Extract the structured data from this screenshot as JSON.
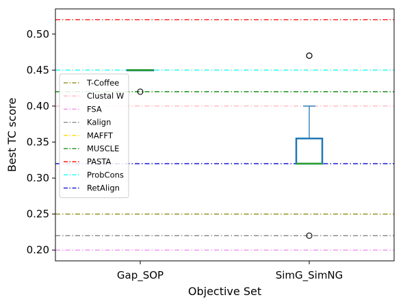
{
  "chart_data": {
    "type": "box",
    "xlabel": "Objective Set",
    "ylabel": "Best TC score",
    "ylim": [
      0.185,
      0.535
    ],
    "yticks": [
      0.2,
      0.25,
      0.3,
      0.35,
      0.4,
      0.45,
      0.5
    ],
    "ytick_labels": [
      "0.20",
      "0.25",
      "0.30",
      "0.35",
      "0.40",
      "0.45",
      "0.50"
    ],
    "categories": [
      "Gap_SOP",
      "SimG_SimNG"
    ],
    "boxes": [
      {
        "category": "Gap_SOP",
        "whisker_low": 0.45,
        "q1": 0.45,
        "median": 0.45,
        "q3": 0.45,
        "whisker_high": 0.45,
        "outliers": [
          0.42
        ]
      },
      {
        "category": "SimG_SimNG",
        "whisker_low": 0.32,
        "q1": 0.32,
        "median": 0.32,
        "q3": 0.355,
        "whisker_high": 0.4,
        "outliers": [
          0.47,
          0.47,
          0.22
        ]
      }
    ],
    "reference_lines": [
      {
        "name": "T-Coffee",
        "value": 0.25,
        "color": "#808000"
      },
      {
        "name": "Clustal W",
        "value": 0.4,
        "color": "#ffb6c1"
      },
      {
        "name": "FSA",
        "value": 0.2,
        "color": "#ee82ee"
      },
      {
        "name": "Kalign",
        "value": 0.22,
        "color": "#808080"
      },
      {
        "name": "MAFFT",
        "value": 0.45,
        "color": "#ffd700"
      },
      {
        "name": "MUSCLE",
        "value": 0.42,
        "color": "#008000"
      },
      {
        "name": "PASTA",
        "value": 0.52,
        "color": "#ff0000"
      },
      {
        "name": "ProbCons",
        "value": 0.45,
        "color": "#00ffff"
      },
      {
        "name": "RetAlign",
        "value": 0.32,
        "color": "#0000cd"
      }
    ],
    "legend_position": "center-left",
    "box_color": "#1f77b4",
    "median_color": "#2ca02c",
    "grid": false
  }
}
